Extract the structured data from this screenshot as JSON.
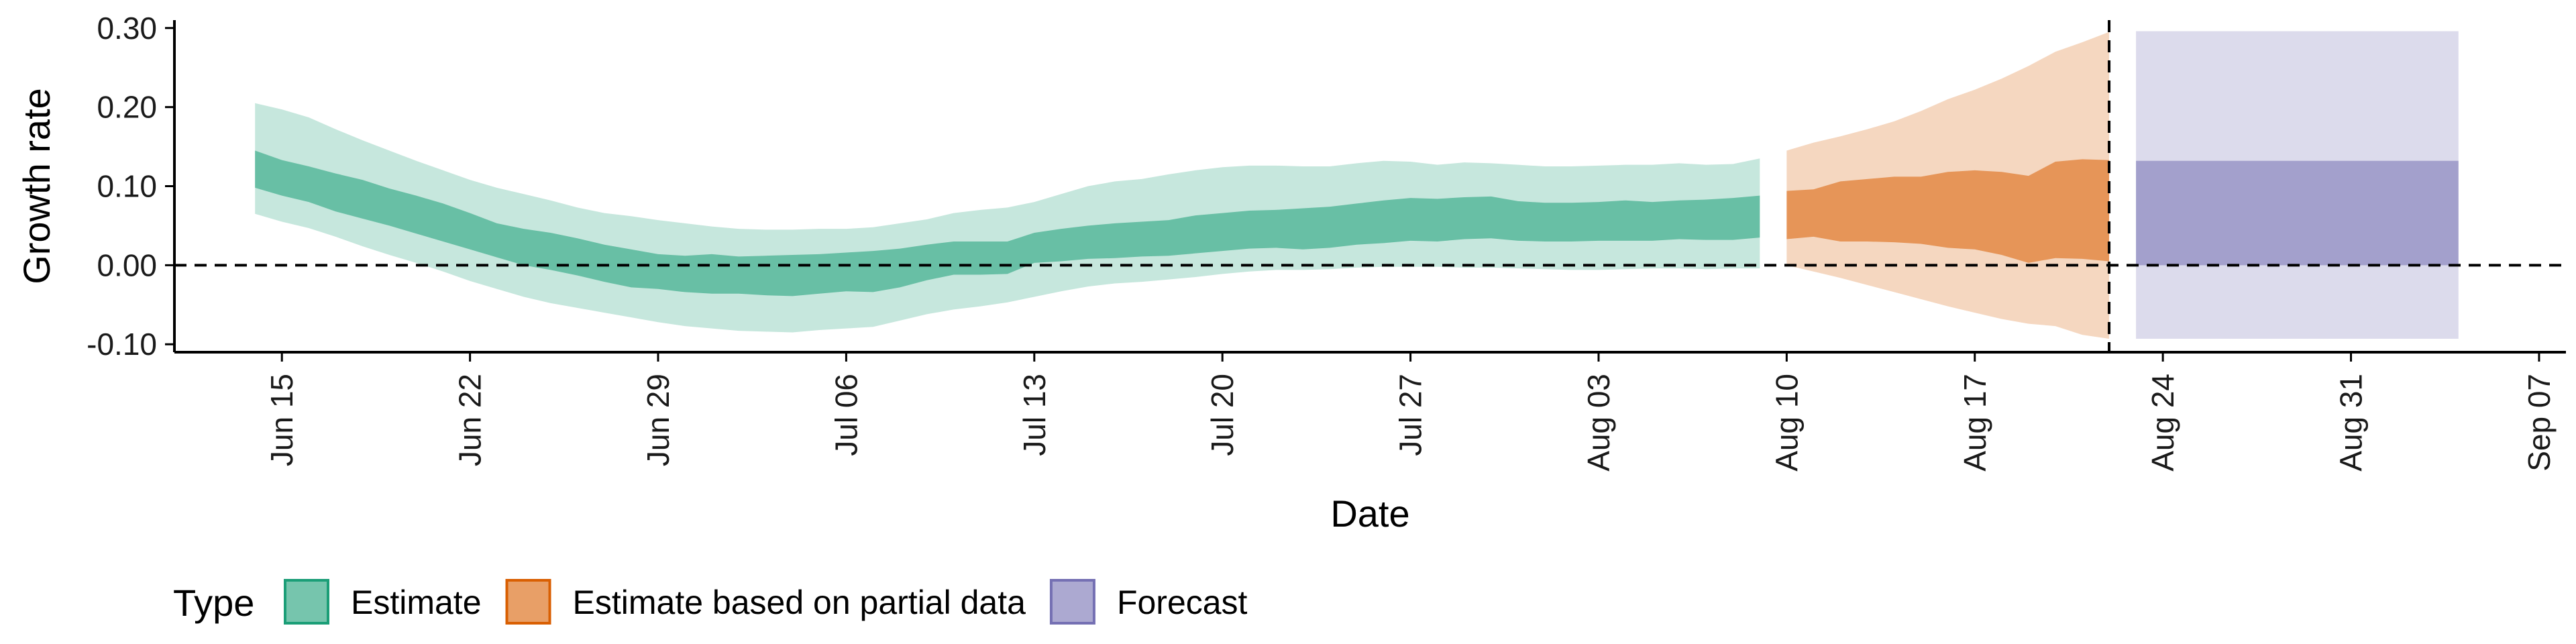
{
  "chart_data": {
    "type": "area",
    "xlabel": "Date",
    "ylabel": "Growth rate",
    "xlim": [
      "2020-06-11",
      "2020-09-08"
    ],
    "ylim": [
      -0.11,
      0.31
    ],
    "yticks": [
      -0.1,
      0.0,
      0.1,
      0.2,
      0.3
    ],
    "ytick_labels": [
      "-0.10",
      "0.00",
      "0.10",
      "0.20",
      "0.30"
    ],
    "xticks": [
      "2020-06-15",
      "2020-06-22",
      "2020-06-29",
      "2020-07-06",
      "2020-07-13",
      "2020-07-20",
      "2020-07-27",
      "2020-08-03",
      "2020-08-10",
      "2020-08-17",
      "2020-08-24",
      "2020-08-31",
      "2020-09-07"
    ],
    "xtick_labels": [
      "Jun 15",
      "Jun 22",
      "Jun 29",
      "Jul 06",
      "Jul 13",
      "Jul 20",
      "Jul 27",
      "Aug 03",
      "Aug 10",
      "Aug 17",
      "Aug 24",
      "Aug 31",
      "Sep 07"
    ],
    "reference_lines": {
      "horizontal_y": 0.0,
      "vertical_x": "2020-08-22"
    },
    "grid": false,
    "legend": {
      "title": "Type",
      "position": "bottom-left",
      "entries": [
        "Estimate",
        "Estimate based on partial data",
        "Forecast"
      ]
    },
    "series": [
      {
        "name": "Estimate",
        "color": "#1b9e77",
        "x": [
          "2020-06-14",
          "2020-06-15",
          "2020-06-16",
          "2020-06-17",
          "2020-06-18",
          "2020-06-19",
          "2020-06-20",
          "2020-06-21",
          "2020-06-22",
          "2020-06-23",
          "2020-06-24",
          "2020-06-25",
          "2020-06-26",
          "2020-06-27",
          "2020-06-28",
          "2020-06-29",
          "2020-06-30",
          "2020-07-01",
          "2020-07-02",
          "2020-07-03",
          "2020-07-04",
          "2020-07-05",
          "2020-07-06",
          "2020-07-07",
          "2020-07-08",
          "2020-07-09",
          "2020-07-10",
          "2020-07-11",
          "2020-07-12",
          "2020-07-13",
          "2020-07-14",
          "2020-07-15",
          "2020-07-16",
          "2020-07-17",
          "2020-07-18",
          "2020-07-19",
          "2020-07-20",
          "2020-07-21",
          "2020-07-22",
          "2020-07-23",
          "2020-07-24",
          "2020-07-25",
          "2020-07-26",
          "2020-07-27",
          "2020-07-28",
          "2020-07-29",
          "2020-07-30",
          "2020-07-31",
          "2020-08-01",
          "2020-08-02",
          "2020-08-03",
          "2020-08-04",
          "2020-08-05",
          "2020-08-06",
          "2020-08-07",
          "2020-08-08",
          "2020-08-09"
        ],
        "upper90": [
          0.205,
          0.197,
          0.187,
          0.172,
          0.158,
          0.145,
          0.132,
          0.12,
          0.108,
          0.098,
          0.09,
          0.082,
          0.073,
          0.066,
          0.062,
          0.057,
          0.053,
          0.049,
          0.046,
          0.045,
          0.045,
          0.046,
          0.046,
          0.048,
          0.053,
          0.058,
          0.066,
          0.07,
          0.073,
          0.08,
          0.09,
          0.1,
          0.106,
          0.109,
          0.115,
          0.12,
          0.124,
          0.126,
          0.126,
          0.125,
          0.125,
          0.129,
          0.132,
          0.131,
          0.127,
          0.13,
          0.129,
          0.127,
          0.125,
          0.125,
          0.126,
          0.127,
          0.127,
          0.129,
          0.127,
          0.128,
          0.135
        ],
        "upper50": [
          0.145,
          0.133,
          0.125,
          0.116,
          0.108,
          0.097,
          0.088,
          0.078,
          0.066,
          0.053,
          0.046,
          0.041,
          0.034,
          0.026,
          0.02,
          0.014,
          0.012,
          0.014,
          0.011,
          0.012,
          0.013,
          0.014,
          0.016,
          0.018,
          0.021,
          0.026,
          0.03,
          0.03,
          0.03,
          0.041,
          0.046,
          0.05,
          0.053,
          0.055,
          0.057,
          0.063,
          0.066,
          0.069,
          0.07,
          0.072,
          0.074,
          0.078,
          0.082,
          0.085,
          0.084,
          0.086,
          0.087,
          0.081,
          0.079,
          0.079,
          0.08,
          0.082,
          0.08,
          0.082,
          0.083,
          0.085,
          0.088
        ],
        "lower50": [
          0.098,
          0.088,
          0.08,
          0.068,
          0.059,
          0.05,
          0.04,
          0.03,
          0.02,
          0.01,
          0.0,
          -0.006,
          -0.013,
          -0.021,
          -0.028,
          -0.03,
          -0.034,
          -0.036,
          -0.036,
          -0.038,
          -0.039,
          -0.036,
          -0.033,
          -0.034,
          -0.028,
          -0.019,
          -0.012,
          -0.012,
          -0.011,
          0.003,
          0.005,
          0.008,
          0.009,
          0.011,
          0.012,
          0.015,
          0.018,
          0.021,
          0.022,
          0.02,
          0.022,
          0.026,
          0.028,
          0.031,
          0.03,
          0.033,
          0.034,
          0.031,
          0.03,
          0.03,
          0.031,
          0.031,
          0.031,
          0.033,
          0.032,
          0.032,
          0.035
        ],
        "lower90": [
          0.065,
          0.055,
          0.047,
          0.036,
          0.024,
          0.013,
          0.003,
          -0.008,
          -0.02,
          -0.03,
          -0.04,
          -0.048,
          -0.054,
          -0.06,
          -0.066,
          -0.072,
          -0.077,
          -0.08,
          -0.083,
          -0.084,
          -0.085,
          -0.082,
          -0.08,
          -0.078,
          -0.07,
          -0.062,
          -0.056,
          -0.052,
          -0.047,
          -0.04,
          -0.033,
          -0.027,
          -0.023,
          -0.021,
          -0.018,
          -0.015,
          -0.011,
          -0.008,
          -0.006,
          -0.006,
          -0.005,
          -0.003,
          -0.002,
          -0.002,
          -0.002,
          -0.003,
          -0.003,
          -0.004,
          -0.005,
          -0.006,
          -0.006,
          -0.005,
          -0.004,
          -0.004,
          -0.005,
          -0.004,
          -0.004
        ]
      },
      {
        "name": "Estimate based on partial data",
        "color": "#d95f02",
        "x": [
          "2020-08-10",
          "2020-08-11",
          "2020-08-12",
          "2020-08-13",
          "2020-08-14",
          "2020-08-15",
          "2020-08-16",
          "2020-08-17",
          "2020-08-18",
          "2020-08-19",
          "2020-08-20",
          "2020-08-21",
          "2020-08-22"
        ],
        "upper90": [
          0.145,
          0.155,
          0.163,
          0.172,
          0.182,
          0.195,
          0.21,
          0.222,
          0.236,
          0.252,
          0.27,
          0.282,
          0.295
        ],
        "upper50": [
          0.094,
          0.096,
          0.106,
          0.109,
          0.112,
          0.112,
          0.118,
          0.12,
          0.118,
          0.113,
          0.131,
          0.134,
          0.133
        ],
        "lower50": [
          0.033,
          0.036,
          0.03,
          0.03,
          0.029,
          0.027,
          0.022,
          0.02,
          0.013,
          0.003,
          0.009,
          0.008,
          0.005
        ],
        "lower90": [
          0.0,
          -0.008,
          -0.016,
          -0.025,
          -0.034,
          -0.043,
          -0.052,
          -0.06,
          -0.068,
          -0.074,
          -0.077,
          -0.088,
          -0.093
        ]
      },
      {
        "name": "Forecast",
        "color": "#7570b3",
        "x": [
          "2020-08-23",
          "2020-09-04"
        ],
        "upper90": [
          0.296,
          0.296
        ],
        "upper50": [
          0.132,
          0.132
        ],
        "lower50": [
          0.0,
          0.0
        ],
        "lower90": [
          -0.093,
          -0.093
        ]
      }
    ]
  }
}
